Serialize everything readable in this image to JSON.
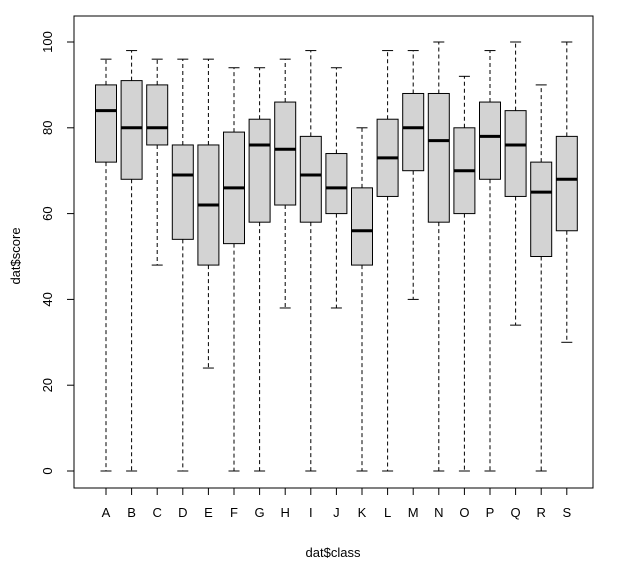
{
  "chart_data": {
    "type": "boxplot",
    "title": "",
    "xlabel": "dat$class",
    "ylabel": "dat$score",
    "ylim": [
      0,
      100
    ],
    "y_ticks": [
      0,
      20,
      40,
      60,
      80,
      100
    ],
    "grid": false,
    "box_fill": "#d3d3d3",
    "categories": [
      "A",
      "B",
      "C",
      "D",
      "E",
      "F",
      "G",
      "H",
      "I",
      "J",
      "K",
      "L",
      "M",
      "N",
      "O",
      "P",
      "Q",
      "R",
      "S"
    ],
    "boxes": [
      {
        "category": "A",
        "min": 0,
        "q1": 72,
        "median": 84,
        "q3": 90,
        "max": 96
      },
      {
        "category": "B",
        "min": 0,
        "q1": 68,
        "median": 80,
        "q3": 91,
        "max": 98
      },
      {
        "category": "C",
        "min": 48,
        "q1": 76,
        "median": 80,
        "q3": 90,
        "max": 96
      },
      {
        "category": "D",
        "min": 0,
        "q1": 54,
        "median": 69,
        "q3": 76,
        "max": 96
      },
      {
        "category": "E",
        "min": 24,
        "q1": 48,
        "median": 62,
        "q3": 76,
        "max": 96
      },
      {
        "category": "F",
        "min": 0,
        "q1": 53,
        "median": 66,
        "q3": 79,
        "max": 94
      },
      {
        "category": "G",
        "min": 0,
        "q1": 58,
        "median": 76,
        "q3": 82,
        "max": 94
      },
      {
        "category": "H",
        "min": 38,
        "q1": 62,
        "median": 75,
        "q3": 86,
        "max": 96
      },
      {
        "category": "I",
        "min": 0,
        "q1": 58,
        "median": 69,
        "q3": 78,
        "max": 98
      },
      {
        "category": "J",
        "min": 38,
        "q1": 60,
        "median": 66,
        "q3": 74,
        "max": 94
      },
      {
        "category": "K",
        "min": 0,
        "q1": 48,
        "median": 56,
        "q3": 66,
        "max": 80
      },
      {
        "category": "L",
        "min": 0,
        "q1": 64,
        "median": 73,
        "q3": 82,
        "max": 98
      },
      {
        "category": "M",
        "min": 40,
        "q1": 70,
        "median": 80,
        "q3": 88,
        "max": 98
      },
      {
        "category": "N",
        "min": 0,
        "q1": 58,
        "median": 77,
        "q3": 88,
        "max": 100
      },
      {
        "category": "O",
        "min": 0,
        "q1": 60,
        "median": 70,
        "q3": 80,
        "max": 92
      },
      {
        "category": "P",
        "min": 0,
        "q1": 68,
        "median": 78,
        "q3": 86,
        "max": 98
      },
      {
        "category": "Q",
        "min": 34,
        "q1": 64,
        "median": 76,
        "q3": 84,
        "max": 100
      },
      {
        "category": "R",
        "min": 0,
        "q1": 50,
        "median": 65,
        "q3": 72,
        "max": 90
      },
      {
        "category": "S",
        "min": 30,
        "q1": 56,
        "median": 68,
        "q3": 78,
        "max": 100
      }
    ]
  }
}
